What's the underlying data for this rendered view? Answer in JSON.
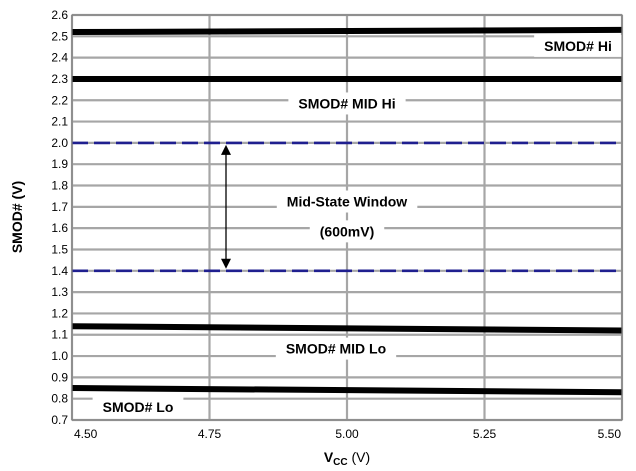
{
  "chart_data": {
    "type": "line",
    "xlabel": "V",
    "xlabel_sub": "CC",
    "xlabel_unit": " (V)",
    "ylabel": "SMOD# (V)",
    "xlim": [
      4.5,
      5.5
    ],
    "ylim": [
      0.7,
      2.6
    ],
    "x_ticks": [
      "4.50",
      "4.75",
      "5.00",
      "5.25",
      "5.50"
    ],
    "y_ticks": [
      "0.7",
      "0.8",
      "0.9",
      "1.0",
      "1.1",
      "1.2",
      "1.3",
      "1.4",
      "1.5",
      "1.6",
      "1.7",
      "1.8",
      "1.9",
      "2.0",
      "2.1",
      "2.2",
      "2.3",
      "2.4",
      "2.5",
      "2.6"
    ],
    "grid": true,
    "series": [
      {
        "name": "SMOD# Hi",
        "x": [
          4.5,
          5.5
        ],
        "values": [
          2.52,
          2.53
        ],
        "color": "#000000",
        "style": "solid"
      },
      {
        "name": "SMOD# MID Hi",
        "x": [
          4.5,
          5.5
        ],
        "values": [
          2.3,
          2.3
        ],
        "color": "#000000",
        "style": "solid"
      },
      {
        "name": "SMOD# MID Lo",
        "x": [
          4.5,
          5.5
        ],
        "values": [
          1.14,
          1.12
        ],
        "color": "#000000",
        "style": "solid"
      },
      {
        "name": "SMOD# Lo",
        "x": [
          4.5,
          5.5
        ],
        "values": [
          0.85,
          0.83
        ],
        "color": "#000000",
        "style": "solid"
      }
    ],
    "reference_lines": [
      {
        "y": 2.0,
        "color": "#1f1f8f",
        "style": "dashed"
      },
      {
        "y": 1.4,
        "color": "#1f1f8f",
        "style": "dashed"
      }
    ],
    "arrow": {
      "x": 4.78,
      "from": 2.0,
      "to": 1.4
    },
    "annotations": [
      {
        "text": "SMOD# Hi",
        "x": 5.42,
        "y": 2.455
      },
      {
        "text": "SMOD# MID Hi",
        "x": 5.0,
        "y": 2.185
      },
      {
        "text": "Mid-State Window",
        "x": 5.0,
        "y": 1.725
      },
      {
        "text": "(600mV)",
        "x": 5.0,
        "y": 1.585
      },
      {
        "text": "SMOD# MID Lo",
        "x": 4.98,
        "y": 1.035
      },
      {
        "text": "SMOD# Lo",
        "x": 4.62,
        "y": 0.76
      }
    ]
  }
}
